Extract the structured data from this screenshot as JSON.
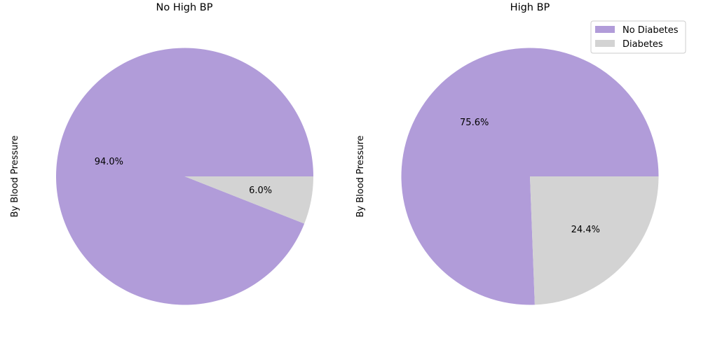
{
  "chart_data": [
    {
      "type": "pie",
      "title": "No High BP",
      "ylabel": "By Blood Pressure",
      "start_angle_deg": 0,
      "direction": "counterclockwise",
      "slices": [
        {
          "label": "No Diabetes",
          "value": 94.0,
          "display": "94.0%",
          "color": "#b19cd9"
        },
        {
          "label": "Diabetes",
          "value": 6.0,
          "display": "6.0%",
          "color": "#d3d3d3"
        }
      ]
    },
    {
      "type": "pie",
      "title": "High BP",
      "ylabel": "By Blood Pressure",
      "start_angle_deg": 0,
      "direction": "counterclockwise",
      "slices": [
        {
          "label": "No Diabetes",
          "value": 75.6,
          "display": "75.6%",
          "color": "#b19cd9"
        },
        {
          "label": "Diabetes",
          "value": 24.4,
          "display": "24.4%",
          "color": "#d3d3d3"
        }
      ]
    }
  ],
  "legend": {
    "placement": "upper right",
    "entries": [
      {
        "label": "No Diabetes",
        "color": "#b19cd9"
      },
      {
        "label": "Diabetes",
        "color": "#d3d3d3"
      }
    ]
  }
}
